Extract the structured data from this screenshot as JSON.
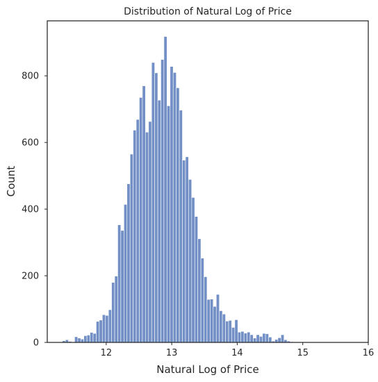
{
  "chart_data": {
    "type": "bar",
    "title": "Distribution of Natural Log of Price",
    "xlabel": "Natural Log of Price",
    "ylabel": "Count",
    "xlim": [
      11.1,
      16.0
    ],
    "ylim": [
      0,
      965
    ],
    "grid": false,
    "bar_color": "#7390c6",
    "bar_edge_color": "#ffffff",
    "axis_color": "#262626",
    "bin_start": 11.33,
    "bin_width": 0.047,
    "counts": [
      5,
      8,
      3,
      0,
      17,
      13,
      10,
      20,
      22,
      30,
      27,
      63,
      67,
      83,
      81,
      98,
      180,
      199,
      353,
      336,
      414,
      476,
      565,
      637,
      669,
      735,
      770,
      631,
      663,
      840,
      809,
      727,
      849,
      918,
      710,
      828,
      810,
      764,
      697,
      547,
      557,
      489,
      435,
      378,
      311,
      253,
      197,
      129,
      130,
      108,
      144,
      95,
      85,
      64,
      66,
      45,
      68,
      31,
      33,
      28,
      31,
      23,
      13,
      23,
      18,
      27,
      26,
      16,
      4,
      9,
      14,
      23,
      8,
      4,
      2,
      0,
      0,
      0,
      0,
      0,
      0,
      0,
      0,
      0,
      0,
      0,
      0,
      0,
      1,
      1,
      1,
      1,
      1,
      1
    ],
    "x_ticks": [
      12,
      13,
      14,
      15,
      16
    ],
    "x_tick_labels": [
      "12",
      "13",
      "14",
      "15",
      "16"
    ],
    "y_ticks": [
      0,
      200,
      400,
      600,
      800
    ],
    "y_tick_labels": [
      "0",
      "200",
      "400",
      "600",
      "800"
    ]
  }
}
